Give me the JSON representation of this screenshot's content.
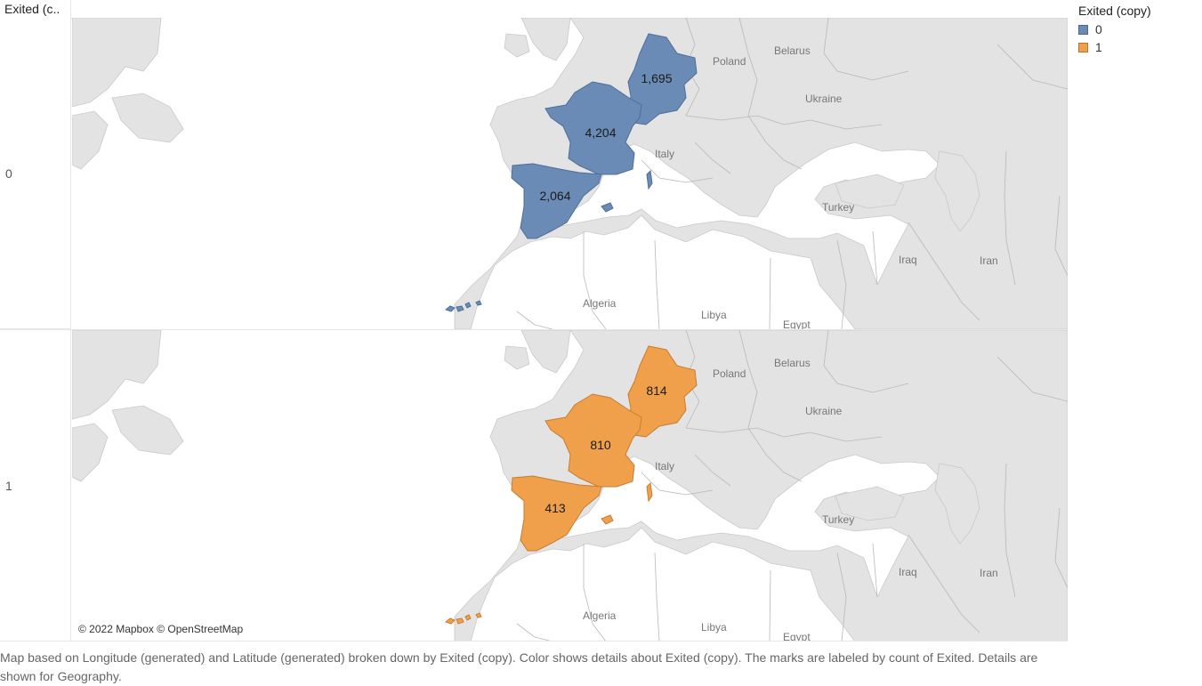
{
  "header": {
    "row_field": "Exited (c.."
  },
  "legend": {
    "title": "Exited (copy)",
    "items": [
      {
        "label": "0",
        "color": "#6a8bb5"
      },
      {
        "label": "1",
        "color": "#f0a04b"
      }
    ]
  },
  "rows": [
    {
      "label": "0",
      "color": "#6a8bb5",
      "stroke": "#4f6f98",
      "values": {
        "germany": "1,695",
        "france": "4,204",
        "spain": "2,064"
      }
    },
    {
      "label": "1",
      "color": "#f0a04b",
      "stroke": "#c77d33",
      "values": {
        "germany": "814",
        "france": "810",
        "spain": "413"
      }
    }
  ],
  "map_labels": {
    "poland": "Poland",
    "belarus": "Belarus",
    "ukraine": "Ukraine",
    "italy": "Italy",
    "turkey": "Turkey",
    "iraq": "Iraq",
    "iran": "Iran",
    "algeria": "Algeria",
    "libya": "Libya",
    "egypt": "Egypt"
  },
  "attribution": "© 2022 Mapbox © OpenStreetMap",
  "caption": "Map based on Longitude (generated) and Latitude (generated) broken down by Exited (copy).  Color shows details about Exited (copy).  The marks are labeled by count of Exited.  Details are shown for Geography.",
  "map_colors": {
    "land": "#e3e3e3",
    "border": "#c9c9c9",
    "water": "#ffffff"
  }
}
